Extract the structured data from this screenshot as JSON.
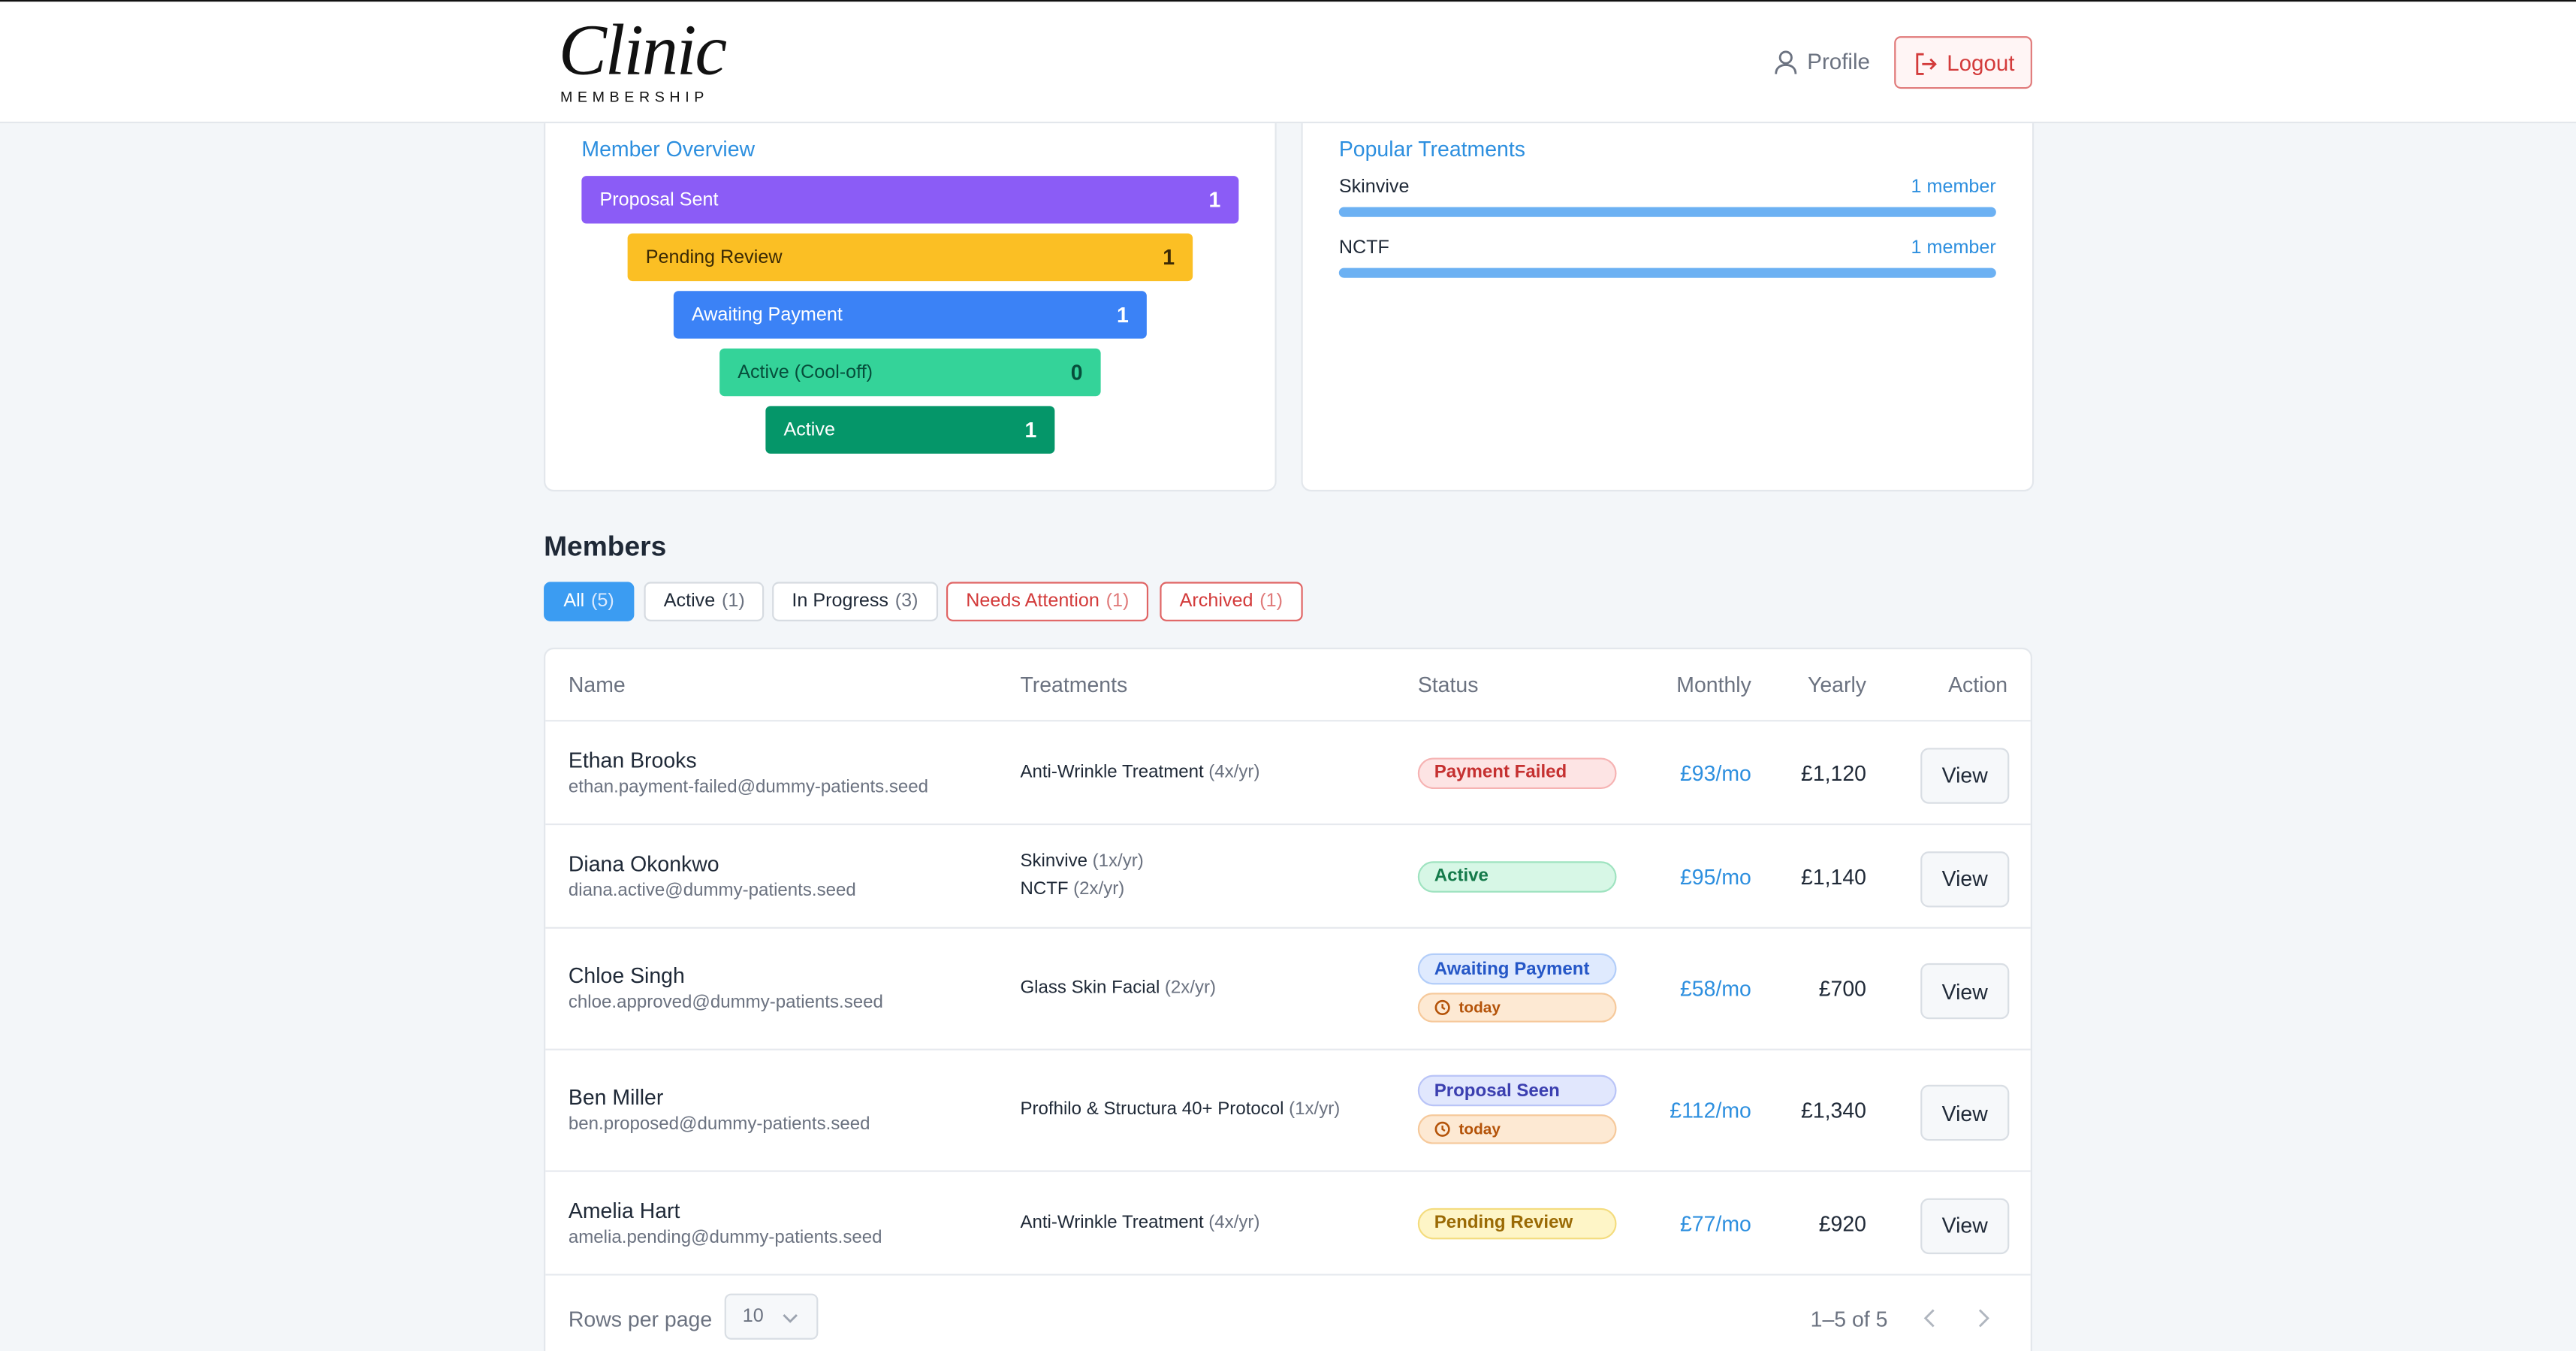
{
  "header": {
    "logo": "Clinic",
    "logo_sub": "MEMBERSHIP",
    "profile": "Profile",
    "logout": "Logout"
  },
  "overview": {
    "title": "Member Overview",
    "stages": [
      {
        "label": "Proposal Sent",
        "count": 1,
        "color": "#8b5cf6",
        "text": "#ffffff"
      },
      {
        "label": "Pending Review",
        "count": 1,
        "color": "#fbbf24",
        "text": "#3b2a05"
      },
      {
        "label": "Awaiting Payment",
        "count": 1,
        "color": "#3b82f6",
        "text": "#ffffff"
      },
      {
        "label": "Active (Cool-off)",
        "count": 0,
        "color": "#34d399",
        "text": "#064e3b"
      },
      {
        "label": "Active",
        "count": 1,
        "color": "#059669",
        "text": "#ffffff"
      }
    ]
  },
  "popular": {
    "title": "Popular Treatments",
    "items": [
      {
        "name": "Skinvive",
        "count": "1 member"
      },
      {
        "name": "NCTF",
        "count": "1 member"
      }
    ]
  },
  "members": {
    "title": "Members",
    "filters": [
      {
        "label": "All",
        "count": "(5)",
        "style": "selected"
      },
      {
        "label": "Active",
        "count": "(1)",
        "style": "plain"
      },
      {
        "label": "In Progress",
        "count": "(3)",
        "style": "plain"
      },
      {
        "label": "Needs Attention",
        "count": "(1)",
        "style": "danger"
      },
      {
        "label": "Archived",
        "count": "(1)",
        "style": "danger"
      }
    ],
    "columns": [
      "Name",
      "Treatments",
      "Status",
      "Monthly",
      "Yearly",
      "Action"
    ],
    "rows": [
      {
        "name": "Ethan Brooks",
        "email": "ethan.payment-failed@dummy-patients.seed",
        "treatments": [
          {
            "name": "Anti-Wrinkle Treatment",
            "freq": "(4x/yr)"
          }
        ],
        "statuses": [
          {
            "label": "Payment Failed",
            "tone": "red"
          }
        ],
        "monthly": "£93/mo",
        "yearly": "£1,120",
        "action": "View"
      },
      {
        "name": "Diana Okonkwo",
        "email": "diana.active@dummy-patients.seed",
        "treatments": [
          {
            "name": "Skinvive",
            "freq": "(1x/yr)"
          },
          {
            "name": "NCTF",
            "freq": "(2x/yr)"
          }
        ],
        "statuses": [
          {
            "label": "Active",
            "tone": "green"
          }
        ],
        "monthly": "£95/mo",
        "yearly": "£1,140",
        "action": "View"
      },
      {
        "name": "Chloe Singh",
        "email": "chloe.approved@dummy-patients.seed",
        "treatments": [
          {
            "name": "Glass Skin Facial",
            "freq": "(2x/yr)"
          }
        ],
        "statuses": [
          {
            "label": "Awaiting Payment",
            "tone": "blue"
          },
          {
            "label": "today",
            "tone": "orange"
          }
        ],
        "monthly": "£58/mo",
        "yearly": "£700",
        "action": "View"
      },
      {
        "name": "Ben Miller",
        "email": "ben.proposed@dummy-patients.seed",
        "treatments": [
          {
            "name": "Profhilo & Structura 40+ Protocol",
            "freq": "(1x/yr)"
          }
        ],
        "statuses": [
          {
            "label": "Proposal Seen",
            "tone": "indigo"
          },
          {
            "label": "today",
            "tone": "orange"
          }
        ],
        "monthly": "£112/mo",
        "yearly": "£1,340",
        "action": "View"
      },
      {
        "name": "Amelia Hart",
        "email": "amelia.pending@dummy-patients.seed",
        "treatments": [
          {
            "name": "Anti-Wrinkle Treatment",
            "freq": "(4x/yr)"
          }
        ],
        "statuses": [
          {
            "label": "Pending Review",
            "tone": "yellow"
          }
        ],
        "monthly": "£77/mo",
        "yearly": "£920",
        "action": "View"
      }
    ],
    "footer": {
      "rows_per_page_label": "Rows per page",
      "rows_per_page": "10",
      "range": "1–5 of 5"
    }
  }
}
